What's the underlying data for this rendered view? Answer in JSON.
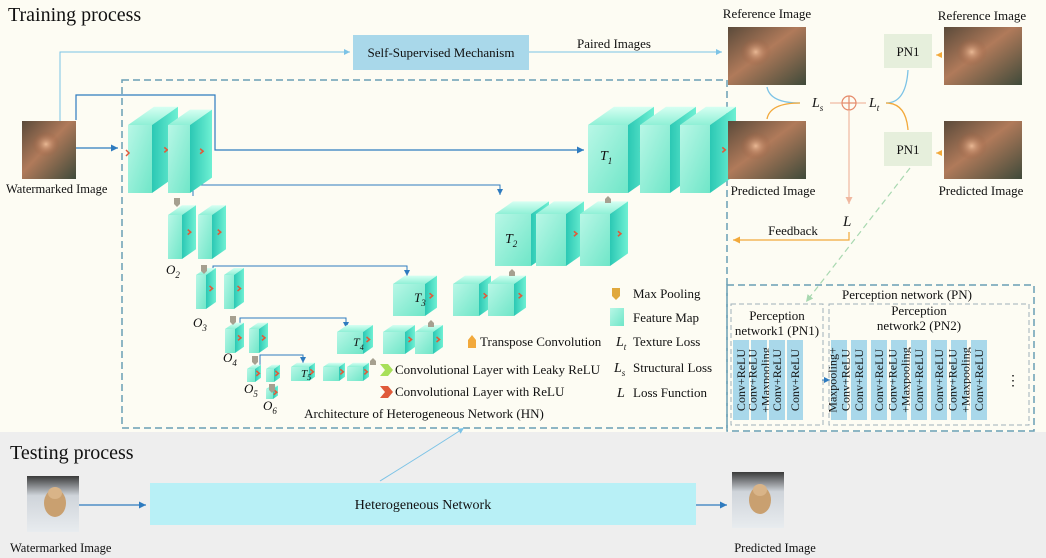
{
  "sections": {
    "training_title": "Training process",
    "testing_title": "Testing process"
  },
  "training": {
    "watermarked_label": "Watermarked Image",
    "self_supervised": "Self-Supervised Mechanism",
    "paired_images": "Paired Images",
    "reference_image": "Reference Image",
    "predicted_image": "Predicted Image",
    "feedback": "Feedback",
    "pn1_a": "PN1",
    "pn1_b": "PN1",
    "loss_ls": "L",
    "loss_ls_sub": "s",
    "loss_lt": "L",
    "loss_lt_sub": "t",
    "loss_l": "L",
    "hn_caption": "Architecture of Heterogeneous Network (HN)",
    "encoder_labels": [
      {
        "main": "O",
        "sub": "2"
      },
      {
        "main": "O",
        "sub": "3"
      },
      {
        "main": "O",
        "sub": "4"
      },
      {
        "main": "O",
        "sub": "5"
      },
      {
        "main": "O",
        "sub": "6"
      }
    ],
    "decoder_labels": [
      {
        "main": "T",
        "sub": "1"
      },
      {
        "main": "T",
        "sub": "2"
      },
      {
        "main": "T",
        "sub": "3"
      },
      {
        "main": "T",
        "sub": "4"
      },
      {
        "main": "T",
        "sub": "5"
      }
    ]
  },
  "legend": {
    "max_pooling": "Max Pooling",
    "feature_map": "Feature Map",
    "transpose_conv": "Transpose Convolution",
    "texture_symbol": "L",
    "texture_sub": "t",
    "texture_loss": "Texture Loss",
    "structural_symbol": "L",
    "structural_sub": "s",
    "structural_loss": "Structural Loss",
    "conv_leaky": "Convolutional Layer with Leaky ReLU",
    "conv_relu": "Convolutional Layer with ReLU",
    "loss_symbol": "L",
    "loss_function": "Loss Function"
  },
  "perception": {
    "title": "Perception network (PN)",
    "pn1_title_line1": "Perception",
    "pn1_title_line2": "network1 (PN1)",
    "pn2_title_line1": "Perception",
    "pn2_title_line2": "network2 (PN2)",
    "pn1_layers": [
      [
        "Conv+ReLU"
      ],
      [
        "Conv+ReLU",
        "+Maxpooling"
      ],
      [
        "Conv+ReLU"
      ],
      [
        "Conv+ReLU"
      ]
    ],
    "pn2_layers": [
      [
        "Maxpooling+",
        "Conv+ReLU"
      ],
      [
        "Conv+ReLU"
      ],
      [
        "Conv+ReLU"
      ],
      [
        "Conv+ReLU",
        "+Maxpooling"
      ],
      [
        "Conv+ReLU"
      ],
      [
        "Conv+ReLU"
      ],
      [
        "Conv+ReLU",
        "+Maxpooling"
      ],
      [
        "Conv+ReLU"
      ]
    ],
    "ellipsis": "⋮"
  },
  "testing": {
    "watermarked_label": "Watermarked Image",
    "network": "Heterogeneous Network",
    "predicted_label": "Predicted Image"
  },
  "colors": {
    "accent_blue": "#2e7bbf",
    "light_blue": "#7cc3e6",
    "box_blue": "#a9d8ea",
    "cube_front": "#9ff5dc",
    "cube_side": "#2fd0b7",
    "pn_box": "#e6efdc",
    "orange": "#f2a93b"
  }
}
